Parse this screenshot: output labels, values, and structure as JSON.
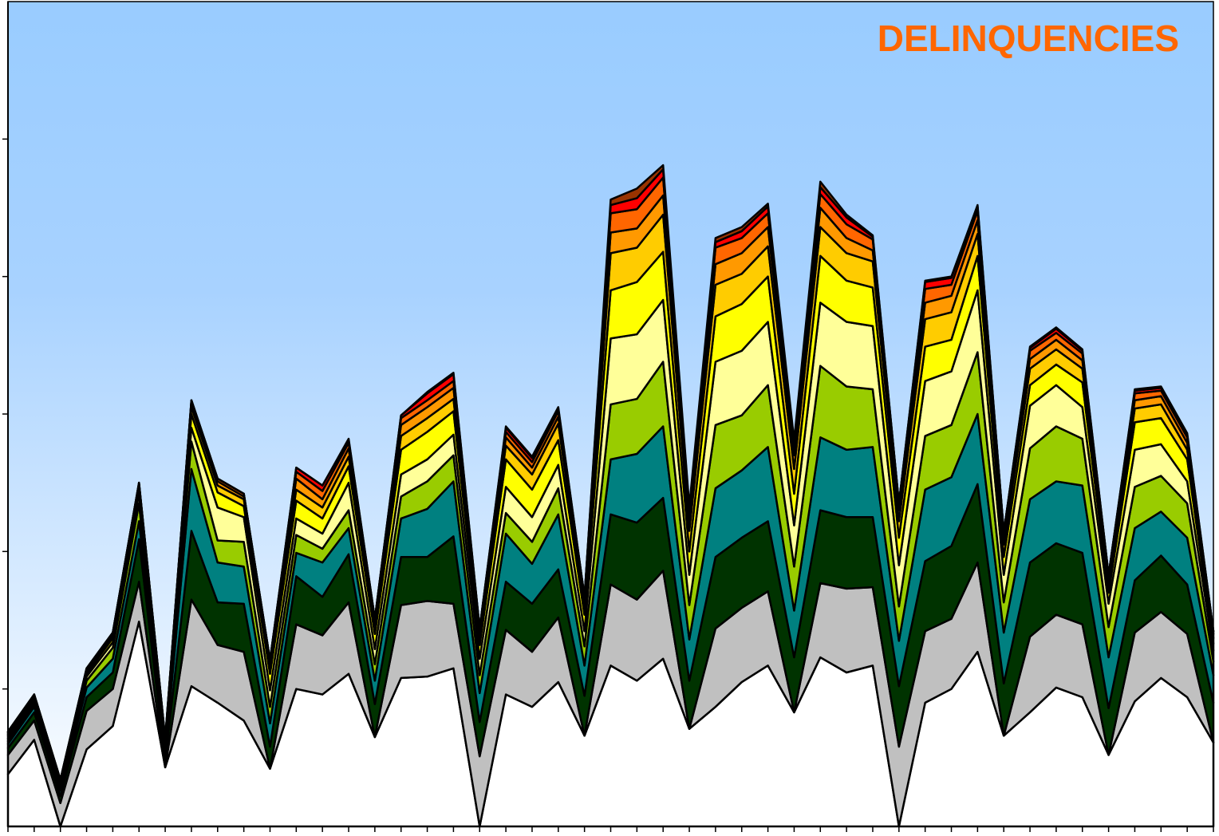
{
  "chart_data": {
    "type": "area",
    "stacked": true,
    "title": "DELINQUENCIES",
    "title_placement": "top-right",
    "xlabel": "",
    "ylabel": "",
    "ylim": [
      0,
      6
    ],
    "ytick_count": 6,
    "grid": false,
    "legend": "none",
    "x_count": 47,
    "colors": {
      "title": "#ff6600",
      "background_top": "#99ccff",
      "background_bottom": "#ffffff",
      "outline": "#000000"
    },
    "series": [
      {
        "color": "#ffffff",
        "values": [
          0.38,
          0.63,
          0.0,
          0.56,
          0.73,
          1.49,
          0.43,
          1.02,
          0.9,
          0.77,
          0.42,
          1.0,
          0.96,
          1.11,
          0.65,
          1.08,
          1.09,
          1.15,
          0.0,
          0.96,
          0.87,
          1.05,
          0.66,
          1.17,
          1.06,
          1.22,
          0.71,
          0.87,
          1.05,
          1.17,
          0.83,
          1.23,
          1.12,
          1.17,
          0.0,
          0.9,
          1.0,
          1.27,
          0.66,
          0.83,
          1.01,
          0.94,
          0.52,
          0.91,
          1.08,
          0.94,
          0.61
        ]
      },
      {
        "color": "#c0c0c0",
        "values": [
          0.14,
          0.14,
          0.17,
          0.28,
          0.27,
          0.29,
          0.0,
          0.63,
          0.42,
          0.5,
          0.0,
          0.47,
          0.43,
          0.52,
          0.0,
          0.53,
          0.55,
          0.47,
          0.51,
          0.47,
          0.4,
          0.47,
          0.0,
          0.59,
          0.59,
          0.64,
          0.0,
          0.57,
          0.54,
          0.54,
          0.0,
          0.54,
          0.61,
          0.57,
          0.58,
          0.52,
          0.51,
          0.65,
          0.0,
          0.55,
          0.53,
          0.53,
          0.0,
          0.5,
          0.48,
          0.46,
          0.0
        ]
      },
      {
        "color": "#003300",
        "values": [
          0.05,
          0.06,
          0.05,
          0.1,
          0.12,
          0.31,
          0.05,
          0.5,
          0.31,
          0.35,
          0.16,
          0.35,
          0.28,
          0.35,
          0.24,
          0.35,
          0.32,
          0.49,
          0.25,
          0.35,
          0.35,
          0.35,
          0.29,
          0.51,
          0.56,
          0.53,
          0.35,
          0.52,
          0.51,
          0.51,
          0.4,
          0.53,
          0.52,
          0.51,
          0.44,
          0.51,
          0.53,
          0.57,
          0.38,
          0.54,
          0.52,
          0.52,
          0.34,
          0.38,
          0.41,
          0.36,
          0.29
        ]
      },
      {
        "color": "#008080",
        "values": [
          0.03,
          0.04,
          0.04,
          0.07,
          0.1,
          0.13,
          0.05,
          0.45,
          0.29,
          0.27,
          0.17,
          0.17,
          0.25,
          0.19,
          0.17,
          0.28,
          0.35,
          0.4,
          0.21,
          0.35,
          0.29,
          0.4,
          0.22,
          0.4,
          0.5,
          0.52,
          0.3,
          0.5,
          0.49,
          0.54,
          0.34,
          0.53,
          0.49,
          0.51,
          0.33,
          0.52,
          0.5,
          0.51,
          0.37,
          0.46,
          0.45,
          0.49,
          0.37,
          0.38,
          0.32,
          0.34,
          0.2
        ]
      },
      {
        "color": "#99cc00",
        "values": [
          0.02,
          0.02,
          0.02,
          0.05,
          0.08,
          0.13,
          0.03,
          0.2,
          0.16,
          0.18,
          0.12,
          0.13,
          0.1,
          0.13,
          0.12,
          0.16,
          0.2,
          0.19,
          0.13,
          0.15,
          0.16,
          0.19,
          0.14,
          0.4,
          0.4,
          0.47,
          0.25,
          0.46,
          0.4,
          0.45,
          0.32,
          0.52,
          0.46,
          0.42,
          0.25,
          0.39,
          0.38,
          0.45,
          0.22,
          0.37,
          0.4,
          0.34,
          0.22,
          0.3,
          0.26,
          0.25,
          0.1
        ]
      },
      {
        "color": "#ffff99",
        "values": [
          0.02,
          0.02,
          0.02,
          0.03,
          0.04,
          0.07,
          0.02,
          0.1,
          0.24,
          0.18,
          0.12,
          0.12,
          0.11,
          0.2,
          0.11,
          0.16,
          0.16,
          0.15,
          0.12,
          0.19,
          0.18,
          0.17,
          0.11,
          0.48,
          0.47,
          0.45,
          0.22,
          0.46,
          0.47,
          0.46,
          0.3,
          0.46,
          0.47,
          0.46,
          0.3,
          0.4,
          0.39,
          0.45,
          0.2,
          0.31,
          0.3,
          0.23,
          0.17,
          0.27,
          0.23,
          0.16,
          0.08
        ]
      },
      {
        "color": "#ffff00",
        "values": [
          0.02,
          0.02,
          0.01,
          0.02,
          0.03,
          0.04,
          0.02,
          0.1,
          0.11,
          0.08,
          0.12,
          0.13,
          0.11,
          0.12,
          0.11,
          0.18,
          0.2,
          0.17,
          0.1,
          0.2,
          0.2,
          0.18,
          0.12,
          0.35,
          0.38,
          0.35,
          0.17,
          0.33,
          0.34,
          0.33,
          0.23,
          0.34,
          0.3,
          0.28,
          0.2,
          0.25,
          0.23,
          0.25,
          0.13,
          0.15,
          0.15,
          0.18,
          0.08,
          0.2,
          0.19,
          0.16,
          0.05
        ]
      },
      {
        "color": "#ffcc00",
        "values": [
          0.01,
          0.01,
          0.01,
          0.02,
          0.02,
          0.02,
          0.02,
          0.05,
          0.05,
          0.05,
          0.05,
          0.08,
          0.08,
          0.07,
          0.06,
          0.1,
          0.1,
          0.09,
          0.06,
          0.1,
          0.11,
          0.12,
          0.06,
          0.27,
          0.25,
          0.27,
          0.15,
          0.23,
          0.22,
          0.22,
          0.18,
          0.21,
          0.2,
          0.19,
          0.12,
          0.2,
          0.2,
          0.16,
          0.09,
          0.12,
          0.11,
          0.1,
          0.06,
          0.1,
          0.1,
          0.07,
          0.04
        ]
      },
      {
        "color": "#ff9900",
        "values": [
          0.01,
          0.01,
          0.01,
          0.01,
          0.01,
          0.01,
          0.01,
          0.03,
          0.03,
          0.02,
          0.03,
          0.08,
          0.06,
          0.06,
          0.03,
          0.08,
          0.08,
          0.08,
          0.04,
          0.06,
          0.05,
          0.05,
          0.04,
          0.15,
          0.14,
          0.14,
          0.08,
          0.15,
          0.15,
          0.14,
          0.1,
          0.14,
          0.11,
          0.08,
          0.08,
          0.12,
          0.12,
          0.1,
          0.05,
          0.07,
          0.07,
          0.06,
          0.04,
          0.06,
          0.06,
          0.05,
          0.03
        ]
      },
      {
        "color": "#ff6600",
        "values": [
          0.01,
          0.01,
          0.01,
          0.01,
          0.01,
          0.01,
          0.01,
          0.02,
          0.02,
          0.02,
          0.02,
          0.05,
          0.06,
          0.04,
          0.02,
          0.05,
          0.05,
          0.05,
          0.02,
          0.04,
          0.04,
          0.04,
          0.03,
          0.14,
          0.14,
          0.13,
          0.06,
          0.12,
          0.11,
          0.1,
          0.07,
          0.1,
          0.1,
          0.08,
          0.05,
          0.1,
          0.08,
          0.07,
          0.04,
          0.06,
          0.05,
          0.05,
          0.03,
          0.05,
          0.04,
          0.04,
          0.02
        ]
      },
      {
        "color": "#ff0000",
        "values": [
          0.0,
          0.0,
          0.0,
          0.0,
          0.0,
          0.0,
          0.0,
          0.0,
          0.0,
          0.0,
          0.0,
          0.03,
          0.04,
          0.02,
          0.0,
          0.02,
          0.05,
          0.05,
          0.0,
          0.03,
          0.03,
          0.02,
          0.0,
          0.06,
          0.08,
          0.06,
          0.02,
          0.04,
          0.05,
          0.05,
          0.02,
          0.05,
          0.05,
          0.02,
          0.0,
          0.05,
          0.05,
          0.03,
          0.0,
          0.02,
          0.03,
          0.02,
          0.0,
          0.02,
          0.02,
          0.02,
          0.0
        ]
      },
      {
        "color": "#993300",
        "values": [
          0.0,
          0.0,
          0.0,
          0.0,
          0.0,
          0.0,
          0.0,
          0.0,
          0.0,
          0.0,
          0.0,
          0.0,
          0.0,
          0.01,
          0.0,
          0.0,
          0.01,
          0.01,
          0.0,
          0.01,
          0.01,
          0.01,
          0.0,
          0.04,
          0.07,
          0.03,
          0.02,
          0.03,
          0.03,
          0.02,
          0.02,
          0.04,
          0.02,
          0.01,
          0.0,
          0.01,
          0.01,
          0.01,
          0.0,
          0.01,
          0.01,
          0.01,
          0.0,
          0.01,
          0.01,
          0.01,
          0.0
        ]
      }
    ]
  }
}
